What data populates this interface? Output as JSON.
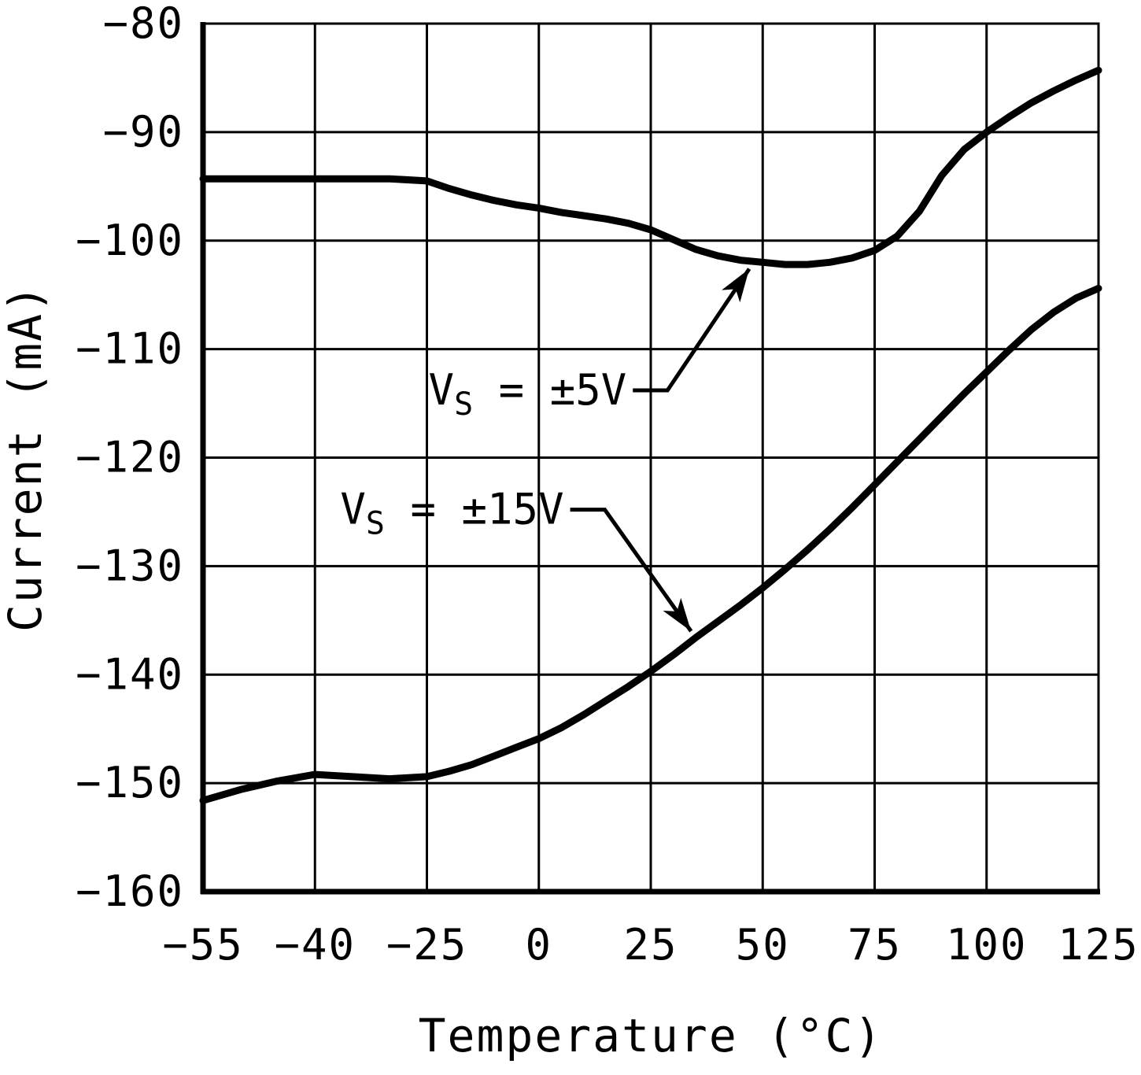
{
  "page": {
    "background": "#ffffff",
    "foreground": "#000000"
  },
  "chart_data": {
    "type": "line",
    "title": "",
    "xlabel": "Temperature (°C)",
    "ylabel": "Current (mA)",
    "grid": true,
    "line_color": "#000000",
    "x_ticks": [
      -55,
      -40,
      -25,
      0,
      25,
      50,
      75,
      100,
      125
    ],
    "x_tick_labels": [
      "−55",
      "−40",
      "−25",
      "0",
      "25",
      "50",
      "75",
      "100",
      "125"
    ],
    "y_ticks": [
      -80,
      -90,
      -100,
      -110,
      -120,
      -130,
      -140,
      -150,
      -160
    ],
    "y_tick_labels": [
      "−80",
      "−90",
      "−100",
      "−110",
      "−120",
      "−130",
      "−140",
      "−150",
      "−160"
    ],
    "ylim": [
      -160,
      -80
    ],
    "series": [
      {
        "name": "VS = ±5V",
        "points": [
          [
            -55,
            -94.3
          ],
          [
            -50,
            -94.3
          ],
          [
            -45,
            -94.3
          ],
          [
            -40,
            -94.3
          ],
          [
            -35,
            -94.3
          ],
          [
            -30,
            -94.3
          ],
          [
            -25,
            -94.5
          ],
          [
            -20,
            -95.2
          ],
          [
            -15,
            -95.8
          ],
          [
            -10,
            -96.3
          ],
          [
            -5,
            -96.7
          ],
          [
            0,
            -97.0
          ],
          [
            5,
            -97.4
          ],
          [
            10,
            -97.7
          ],
          [
            15,
            -98.0
          ],
          [
            20,
            -98.4
          ],
          [
            25,
            -99.0
          ],
          [
            30,
            -99.9
          ],
          [
            35,
            -100.8
          ],
          [
            40,
            -101.4
          ],
          [
            45,
            -101.8
          ],
          [
            50,
            -102.0
          ],
          [
            55,
            -102.2
          ],
          [
            60,
            -102.2
          ],
          [
            65,
            -102.0
          ],
          [
            70,
            -101.6
          ],
          [
            75,
            -100.9
          ],
          [
            80,
            -99.6
          ],
          [
            85,
            -97.3
          ],
          [
            90,
            -94.0
          ],
          [
            95,
            -91.6
          ],
          [
            100,
            -90.0
          ],
          [
            105,
            -88.6
          ],
          [
            110,
            -87.3
          ],
          [
            115,
            -86.2
          ],
          [
            120,
            -85.2
          ],
          [
            125,
            -84.3
          ]
        ]
      },
      {
        "name": "VS = ±15V",
        "points": [
          [
            -55,
            -151.6
          ],
          [
            -50,
            -150.6
          ],
          [
            -45,
            -149.8
          ],
          [
            -40,
            -149.2
          ],
          [
            -35,
            -149.4
          ],
          [
            -30,
            -149.6
          ],
          [
            -25,
            -149.4
          ],
          [
            -20,
            -148.9
          ],
          [
            -15,
            -148.3
          ],
          [
            -10,
            -147.5
          ],
          [
            -5,
            -146.7
          ],
          [
            0,
            -145.9
          ],
          [
            5,
            -144.9
          ],
          [
            10,
            -143.7
          ],
          [
            15,
            -142.4
          ],
          [
            20,
            -141.1
          ],
          [
            25,
            -139.7
          ],
          [
            30,
            -138.2
          ],
          [
            35,
            -136.6
          ],
          [
            40,
            -135.1
          ],
          [
            45,
            -133.6
          ],
          [
            50,
            -132.0
          ],
          [
            55,
            -130.3
          ],
          [
            60,
            -128.5
          ],
          [
            65,
            -126.6
          ],
          [
            70,
            -124.6
          ],
          [
            75,
            -122.5
          ],
          [
            80,
            -120.4
          ],
          [
            85,
            -118.3
          ],
          [
            90,
            -116.2
          ],
          [
            95,
            -114.1
          ],
          [
            100,
            -112.1
          ],
          [
            105,
            -110.1
          ],
          [
            110,
            -108.2
          ],
          [
            115,
            -106.6
          ],
          [
            120,
            -105.3
          ],
          [
            125,
            -104.4
          ]
        ]
      }
    ],
    "annotations": [
      {
        "text_v": "V",
        "text_sub": "S",
        "text_rest": " = ±5V",
        "label_t": 21,
        "label_i": -113.8,
        "target_t": 47,
        "target_i": -102.6
      },
      {
        "text_v": "V",
        "text_sub": "S",
        "text_rest": " = ±15V",
        "label_t": 7,
        "label_i": -124.8,
        "target_t": 34,
        "target_i": -136.0
      }
    ],
    "legend_position": "none"
  }
}
